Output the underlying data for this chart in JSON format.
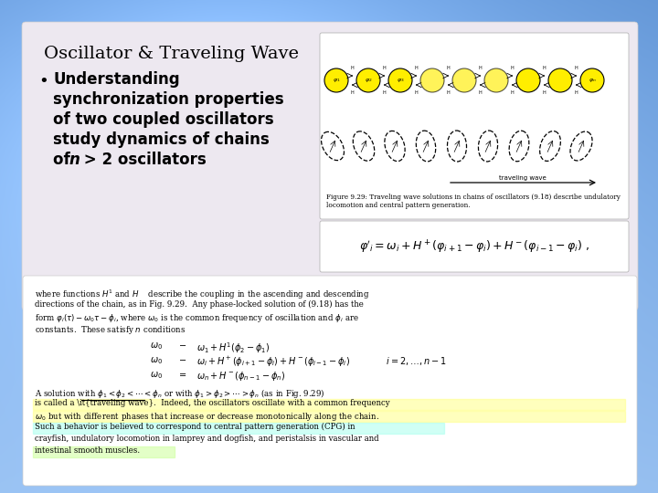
{
  "title": "Oscillator & Traveling Wave",
  "bullet_lines": [
    "Understanding",
    "synchronization properties",
    "of two coupled oscillators",
    "study dynamics of chains",
    "of n > 2 oscillators"
  ],
  "oscillator_color": "#ffee00",
  "slide_panel_color": "#ede8f0",
  "chain_n": 9,
  "title_fontsize": 14,
  "bullet_fontsize": 12,
  "body_fontsize": 6.2,
  "eq_fontsize": 9
}
